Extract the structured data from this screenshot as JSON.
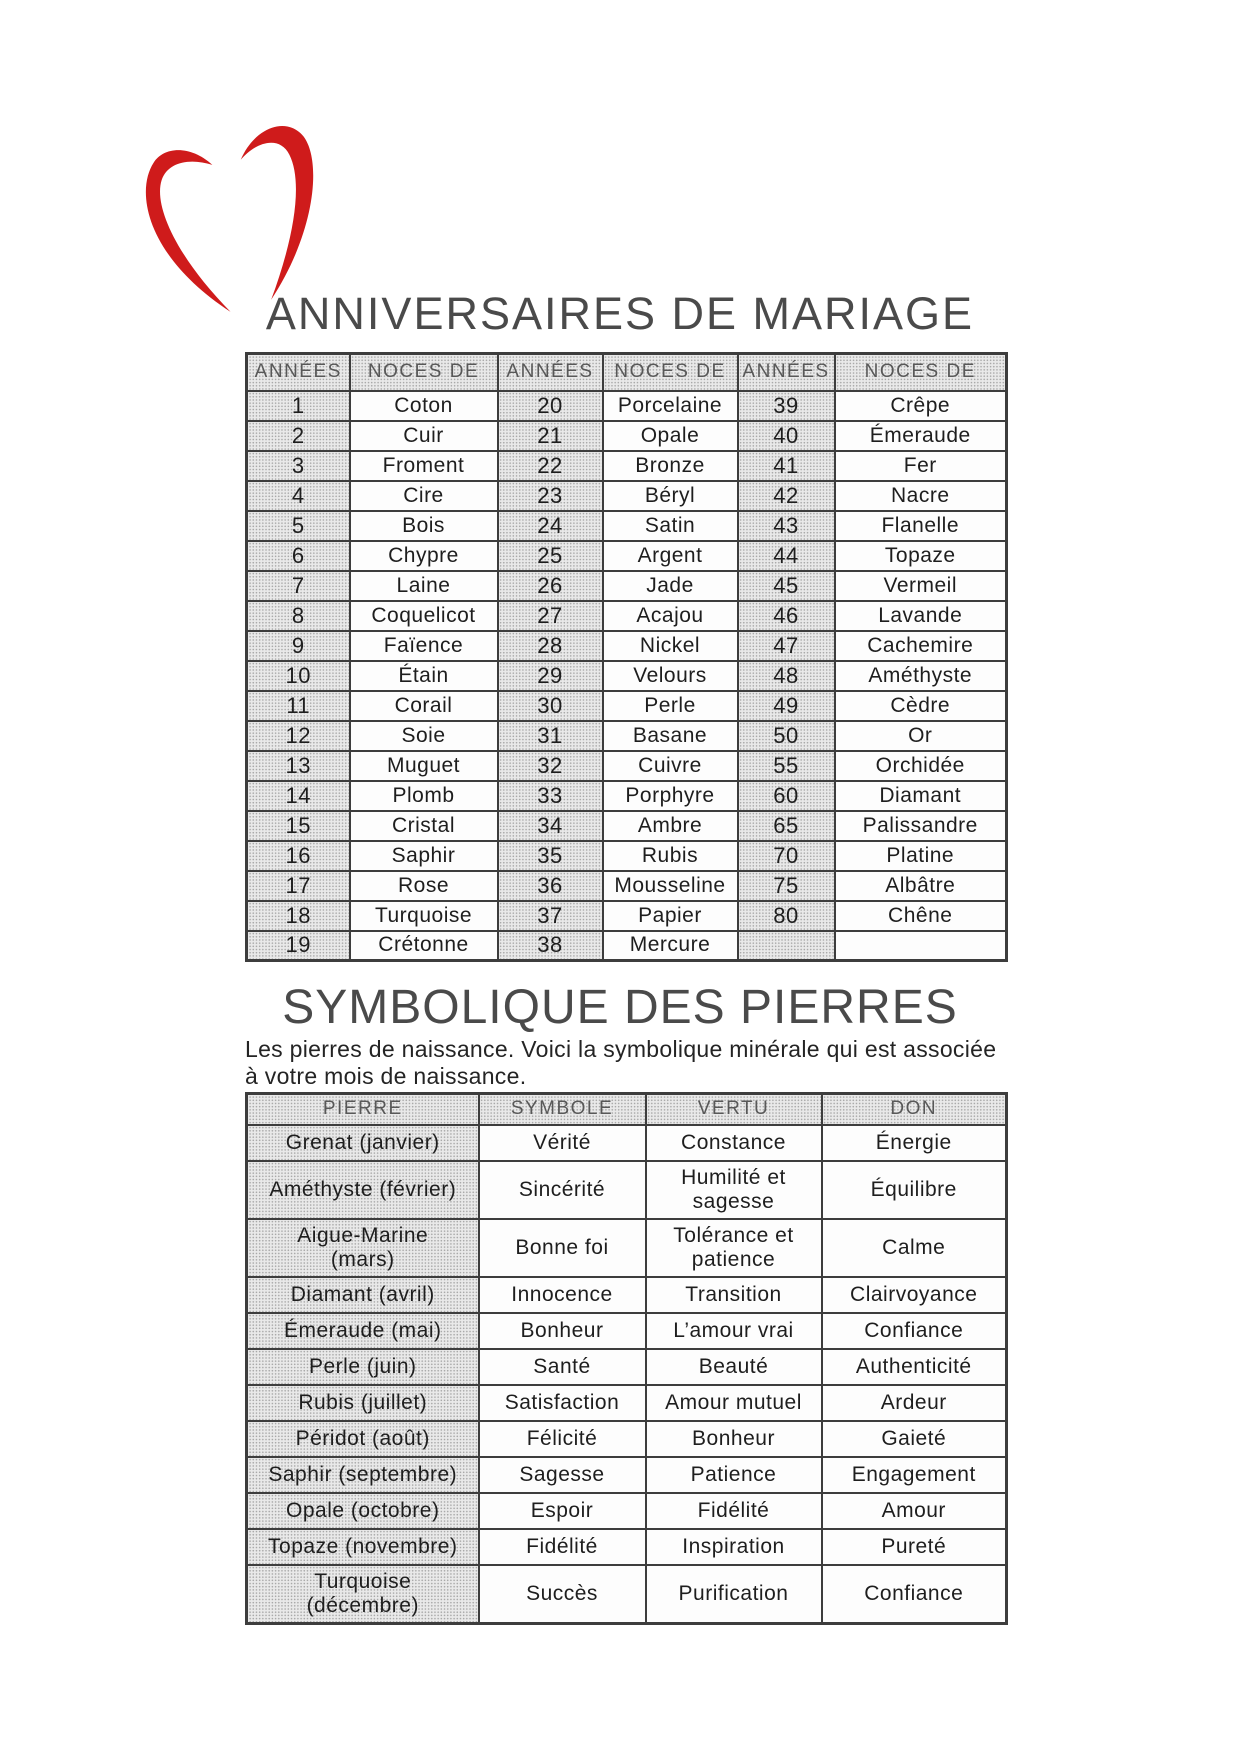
{
  "page": {
    "title1": "ANNIVERSAIRES DE MARIAGE",
    "title2": "SYMBOLIQUE DES PIERRES",
    "intro_line1": "Les pierres de naissance. Voici la symbolique minérale qui est associée",
    "intro_line2": "à votre mois de naissance.",
    "heart_icon": "brush-stroke-heart",
    "heart_color": "#cf1b1b"
  },
  "anniversaries": {
    "headers": [
      "ANNÉES",
      "NOCES DE",
      "ANNÉES",
      "NOCES DE",
      "ANNÉES",
      "NOCES DE"
    ],
    "rows": [
      [
        "1",
        "Coton",
        "20",
        "Porcelaine",
        "39",
        "Crêpe"
      ],
      [
        "2",
        "Cuir",
        "21",
        "Opale",
        "40",
        "Émeraude"
      ],
      [
        "3",
        "Froment",
        "22",
        "Bronze",
        "41",
        "Fer"
      ],
      [
        "4",
        "Cire",
        "23",
        "Béryl",
        "42",
        "Nacre"
      ],
      [
        "5",
        "Bois",
        "24",
        "Satin",
        "43",
        "Flanelle"
      ],
      [
        "6",
        "Chypre",
        "25",
        "Argent",
        "44",
        "Topaze"
      ],
      [
        "7",
        "Laine",
        "26",
        "Jade",
        "45",
        "Vermeil"
      ],
      [
        "8",
        "Coquelicot",
        "27",
        "Acajou",
        "46",
        "Lavande"
      ],
      [
        "9",
        "Faïence",
        "28",
        "Nickel",
        "47",
        "Cachemire"
      ],
      [
        "10",
        "Étain",
        "29",
        "Velours",
        "48",
        "Améthyste"
      ],
      [
        "11",
        "Corail",
        "30",
        "Perle",
        "49",
        "Cèdre"
      ],
      [
        "12",
        "Soie",
        "31",
        "Basane",
        "50",
        "Or"
      ],
      [
        "13",
        "Muguet",
        "32",
        "Cuivre",
        "55",
        "Orchidée"
      ],
      [
        "14",
        "Plomb",
        "33",
        "Porphyre",
        "60",
        "Diamant"
      ],
      [
        "15",
        "Cristal",
        "34",
        "Ambre",
        "65",
        "Palissandre"
      ],
      [
        "16",
        "Saphir",
        "35",
        "Rubis",
        "70",
        "Platine"
      ],
      [
        "17",
        "Rose",
        "36",
        "Mousseline",
        "75",
        "Albâtre"
      ],
      [
        "18",
        "Turquoise",
        "37",
        "Papier",
        "80",
        "Chêne"
      ],
      [
        "19",
        "Crétonne",
        "38",
        "Mercure",
        "",
        ""
      ]
    ]
  },
  "stones": {
    "headers": [
      "PIERRE",
      "SYMBOLE",
      "VERTU",
      "DON"
    ],
    "rows": [
      [
        "Grenat (janvier)",
        "Vérité",
        "Constance",
        "Énergie"
      ],
      [
        "Améthyste (février)",
        "Sincérité",
        "Humilité et\nsagesse",
        "Équilibre"
      ],
      [
        "Aigue-Marine\n(mars)",
        "Bonne foi",
        "Tolérance et\npatience",
        "Calme"
      ],
      [
        "Diamant (avril)",
        "Innocence",
        "Transition",
        "Clairvoyance"
      ],
      [
        "Émeraude (mai)",
        "Bonheur",
        "L’amour vrai",
        "Confiance"
      ],
      [
        "Perle (juin)",
        "Santé",
        "Beauté",
        "Authenticité"
      ],
      [
        "Rubis (juillet)",
        "Satisfaction",
        "Amour mutuel",
        "Ardeur"
      ],
      [
        "Péridot (août)",
        "Félicité",
        "Bonheur",
        "Gaieté"
      ],
      [
        "Saphir (septembre)",
        "Sagesse",
        "Patience",
        "Engagement"
      ],
      [
        "Opale (octobre)",
        "Espoir",
        "Fidélité",
        "Amour"
      ],
      [
        "Topaze (novembre)",
        "Fidélité",
        "Inspiration",
        "Pureté"
      ],
      [
        "Turquoise\n(décembre)",
        "Succès",
        "Purification",
        "Confiance"
      ]
    ]
  }
}
